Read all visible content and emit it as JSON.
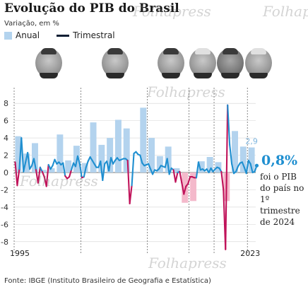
{
  "header": {
    "title": "Evolução do PIB do Brasil",
    "subtitle": "Variação, em %"
  },
  "legend": {
    "annual": "Anual",
    "quarterly": "Trimestral"
  },
  "colors": {
    "annual_bar": "#b3d3ee",
    "annual_bar_negative": "#f4b9cb",
    "quarterly_line_positive": "#1f8fd0",
    "quarterly_line_negative": "#c0135a",
    "highlight": "#1f8fd0"
  },
  "portraits": [
    "portrait-1",
    "portrait-2",
    "portrait-3",
    "portrait-4",
    "portrait-5",
    "portrait-6"
  ],
  "annotation": {
    "value": "0,8%",
    "text": "foi o PIB do país no 1º trimestre de 2024",
    "last_annual_label": "2,9"
  },
  "footer": "Fonte: IBGE (Instituto Brasileiro de Geografia e Estatística)",
  "watermark": "Folhapress",
  "chart_data": {
    "type": "bar",
    "x_start_label": "1995",
    "x_end_label": "2023",
    "yticks": [
      8,
      6,
      4,
      2,
      0,
      -2,
      -4,
      -6,
      -8
    ],
    "ylim": [
      -9,
      9
    ],
    "grid": true,
    "term_starts": [
      1995,
      2003,
      2011,
      2016,
      2019,
      2023
    ],
    "annual": {
      "years": [
        1995,
        1996,
        1997,
        1998,
        1999,
        2000,
        2001,
        2002,
        2003,
        2004,
        2005,
        2006,
        2007,
        2008,
        2009,
        2010,
        2011,
        2012,
        2013,
        2014,
        2015,
        2016,
        2017,
        2018,
        2019,
        2020,
        2021,
        2022,
        2023
      ],
      "values": [
        4.2,
        2.2,
        3.4,
        0.3,
        0.5,
        4.4,
        1.4,
        3.1,
        1.1,
        5.8,
        3.2,
        4.0,
        6.1,
        5.1,
        0.1,
        7.5,
        4.0,
        1.9,
        3.0,
        0.5,
        -3.5,
        -3.3,
        1.3,
        1.8,
        1.2,
        -3.3,
        4.8,
        3.0,
        2.9
      ]
    },
    "quarterly": [
      [
        1995.0,
        1.2
      ],
      [
        1995.25,
        -1.5
      ],
      [
        1995.5,
        0.4
      ],
      [
        1995.75,
        4.0
      ],
      [
        1996.0,
        0.1
      ],
      [
        1996.25,
        1.2
      ],
      [
        1996.5,
        2.3
      ],
      [
        1996.75,
        0.4
      ],
      [
        1997.0,
        0.8
      ],
      [
        1997.25,
        1.6
      ],
      [
        1997.5,
        0.3
      ],
      [
        1997.75,
        -1.2
      ],
      [
        1998.0,
        0.6
      ],
      [
        1998.25,
        0.1
      ],
      [
        1998.5,
        -0.5
      ],
      [
        1998.75,
        -1.6
      ],
      [
        1999.0,
        0.9
      ],
      [
        1999.25,
        0.4
      ],
      [
        1999.5,
        0.8
      ],
      [
        1999.75,
        1.5
      ],
      [
        2000.0,
        1.0
      ],
      [
        2000.25,
        1.2
      ],
      [
        2000.5,
        0.9
      ],
      [
        2000.75,
        1.1
      ],
      [
        2001.0,
        -0.4
      ],
      [
        2001.25,
        -0.7
      ],
      [
        2001.5,
        -0.5
      ],
      [
        2001.75,
        0.3
      ],
      [
        2002.0,
        1.1
      ],
      [
        2002.25,
        0.7
      ],
      [
        2002.5,
        1.9
      ],
      [
        2002.75,
        1.0
      ],
      [
        2003.0,
        -0.6
      ],
      [
        2003.25,
        -0.5
      ],
      [
        2003.5,
        0.6
      ],
      [
        2003.75,
        1.3
      ],
      [
        2004.0,
        1.8
      ],
      [
        2004.25,
        1.4
      ],
      [
        2004.5,
        1.0
      ],
      [
        2004.75,
        0.6
      ],
      [
        2005.0,
        0.6
      ],
      [
        2005.25,
        1.3
      ],
      [
        2005.5,
        -0.9
      ],
      [
        2005.75,
        1.0
      ],
      [
        2006.0,
        1.3
      ],
      [
        2006.25,
        0.2
      ],
      [
        2006.5,
        1.7
      ],
      [
        2006.75,
        1.0
      ],
      [
        2007.0,
        1.4
      ],
      [
        2007.25,
        1.7
      ],
      [
        2007.5,
        1.4
      ],
      [
        2007.75,
        1.5
      ],
      [
        2008.0,
        1.6
      ],
      [
        2008.25,
        1.6
      ],
      [
        2008.5,
        1.4
      ],
      [
        2008.75,
        -3.6
      ],
      [
        2009.0,
        -1.5
      ],
      [
        2009.25,
        2.2
      ],
      [
        2009.5,
        2.4
      ],
      [
        2009.75,
        2.1
      ],
      [
        2010.0,
        2.0
      ],
      [
        2010.25,
        1.1
      ],
      [
        2010.5,
        0.8
      ],
      [
        2010.75,
        0.9
      ],
      [
        2011.0,
        1.0
      ],
      [
        2011.25,
        0.4
      ],
      [
        2011.5,
        -0.2
      ],
      [
        2011.75,
        0.3
      ],
      [
        2012.0,
        0.2
      ],
      [
        2012.25,
        0.4
      ],
      [
        2012.5,
        0.8
      ],
      [
        2012.75,
        0.7
      ],
      [
        2013.0,
        0.6
      ],
      [
        2013.25,
        1.6
      ],
      [
        2013.5,
        -0.2
      ],
      [
        2013.75,
        0.5
      ],
      [
        2014.0,
        0.3
      ],
      [
        2014.25,
        -1.1
      ],
      [
        2014.5,
        0.0
      ],
      [
        2014.75,
        0.1
      ],
      [
        2015.0,
        -1.2
      ],
      [
        2015.25,
        -2.5
      ],
      [
        2015.5,
        -1.6
      ],
      [
        2015.75,
        -1.3
      ],
      [
        2016.0,
        -0.5
      ],
      [
        2016.25,
        -0.5
      ],
      [
        2016.5,
        -0.6
      ],
      [
        2016.75,
        -0.6
      ],
      [
        2017.0,
        1.2
      ],
      [
        2017.25,
        0.3
      ],
      [
        2017.5,
        0.4
      ],
      [
        2017.75,
        0.2
      ],
      [
        2018.0,
        0.4
      ],
      [
        2018.25,
        0.0
      ],
      [
        2018.5,
        0.5
      ],
      [
        2018.75,
        0.1
      ],
      [
        2019.0,
        0.4
      ],
      [
        2019.25,
        0.6
      ],
      [
        2019.5,
        0.5
      ],
      [
        2019.75,
        0.1
      ],
      [
        2020.0,
        -2.0
      ],
      [
        2020.25,
        -8.9
      ],
      [
        2020.5,
        7.8
      ],
      [
        2020.75,
        3.2
      ],
      [
        2021.0,
        1.0
      ],
      [
        2021.25,
        -0.1
      ],
      [
        2021.5,
        0.1
      ],
      [
        2021.75,
        0.7
      ],
      [
        2022.0,
        1.1
      ],
      [
        2022.25,
        1.2
      ],
      [
        2022.5,
        0.6
      ],
      [
        2022.75,
        -0.1
      ],
      [
        2023.0,
        1.4
      ],
      [
        2023.25,
        1.0
      ],
      [
        2023.5,
        0.0
      ],
      [
        2023.75,
        0.1
      ],
      [
        2024.0,
        0.8
      ]
    ]
  }
}
